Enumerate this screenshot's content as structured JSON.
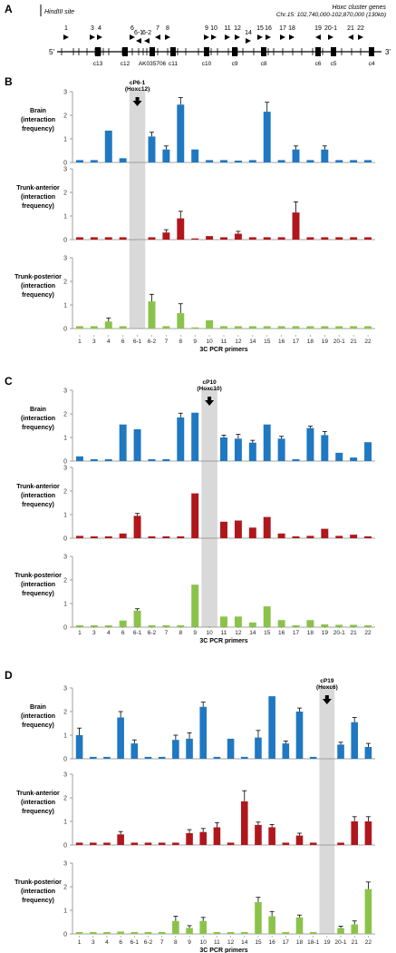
{
  "panel_a": {
    "letter": "A",
    "legend_label": "HindIII site",
    "title_line1": "Hoxc cluster genes",
    "title_line2": "Chr.15: 102,740,000-102,870,000 (130kb)",
    "end5": "5'",
    "end3": "3'",
    "primer_labels": [
      "1",
      "3",
      "4",
      "6",
      "6-1",
      "6-2",
      "7",
      "8",
      "9",
      "10",
      "11",
      "12",
      "14",
      "15",
      "16",
      "17",
      "18",
      "19",
      "20-1",
      "21",
      "22"
    ],
    "gene_labels": [
      "c13",
      "c12",
      "AK035706",
      "c11",
      "c10",
      "c9",
      "c8",
      "c6",
      "c5",
      "c4"
    ]
  },
  "colors": {
    "brain": "#1f78c1",
    "trunk_anterior": "#b0171c",
    "trunk_posterior": "#8bc34a",
    "bait_band": "#d9d9d9"
  },
  "row_labels": {
    "brain": [
      "Brain",
      "(interaction",
      "frequency)"
    ],
    "trunk_anterior": [
      "Trunk-anterior",
      "(interaction",
      "frequency)"
    ],
    "trunk_posterior": [
      "Trunk-posterior",
      "(interaction",
      "frequency)"
    ]
  },
  "chart_data": [
    {
      "panel": "B",
      "type": "bar",
      "bait": {
        "primer": "6-1",
        "label_line1": "cP6-1",
        "label_line2": "(Hoxc12)"
      },
      "xlabel": "3C PCR primers",
      "categories": [
        "1",
        "3",
        "4",
        "6",
        "6-1",
        "6-2",
        "7",
        "8",
        "9",
        "10",
        "11",
        "12",
        "14",
        "15",
        "16",
        "17",
        "18",
        "19",
        "20-1",
        "21",
        "22"
      ],
      "ylim": [
        0,
        3
      ],
      "yticks": [
        0,
        1,
        2,
        3
      ],
      "series": [
        {
          "key": "brain",
          "values": [
            0.1,
            0.1,
            1.35,
            0.18,
            null,
            1.1,
            0.55,
            2.45,
            0.55,
            0.1,
            0.1,
            0.08,
            0.1,
            2.15,
            0.1,
            0.55,
            0.1,
            0.55,
            0.1,
            0.1,
            0.1
          ],
          "errors": [
            0,
            0,
            0,
            0,
            null,
            0.18,
            0.15,
            0.3,
            0,
            0,
            0,
            0,
            0,
            0.4,
            0,
            0.15,
            0,
            0.15,
            0,
            0,
            0
          ]
        },
        {
          "key": "trunk_anterior",
          "values": [
            0.1,
            0.1,
            0.1,
            0.1,
            null,
            0.1,
            0.3,
            0.9,
            0.05,
            0.15,
            0.1,
            0.25,
            0.1,
            0.1,
            0.1,
            1.15,
            0.1,
            0.1,
            0.1,
            0.1,
            0.1
          ],
          "errors": [
            0,
            0,
            0,
            0,
            null,
            0,
            0.12,
            0.3,
            0,
            0,
            0,
            0.1,
            0,
            0,
            0,
            0.45,
            0,
            0,
            0,
            0,
            0
          ]
        },
        {
          "key": "trunk_posterior",
          "values": [
            0.1,
            0.1,
            0.3,
            0.1,
            null,
            1.15,
            0.1,
            0.65,
            0.05,
            0.35,
            0.1,
            0.1,
            0.1,
            0.1,
            0.1,
            0.1,
            0.1,
            0.1,
            0.1,
            0.1,
            0.1
          ],
          "errors": [
            0,
            0,
            0.15,
            0,
            null,
            0.3,
            0,
            0.4,
            0,
            0,
            0,
            0,
            0,
            0,
            0,
            0,
            0,
            0,
            0,
            0,
            0
          ]
        }
      ]
    },
    {
      "panel": "C",
      "type": "bar",
      "bait": {
        "primer": "10",
        "label_line1": "cP10",
        "label_line2": "(Hoxc10)"
      },
      "xlabel": "3C PCR primers",
      "categories": [
        "1",
        "3",
        "4",
        "6",
        "6-1",
        "6-2",
        "7",
        "8",
        "9",
        "10",
        "11",
        "12",
        "14",
        "15",
        "16",
        "17",
        "18",
        "19",
        "20-1",
        "21",
        "22"
      ],
      "ylim": [
        0,
        3
      ],
      "yticks": [
        0,
        1,
        2,
        3
      ],
      "series": [
        {
          "key": "brain",
          "values": [
            0.2,
            0.08,
            0.08,
            1.55,
            1.35,
            0.08,
            0.08,
            1.85,
            2.05,
            null,
            1.0,
            0.95,
            0.78,
            1.55,
            0.95,
            0.08,
            1.4,
            1.1,
            0.35,
            0.15,
            0.8
          ],
          "errors": [
            0,
            0,
            0,
            0,
            0,
            0,
            0,
            0.18,
            0,
            null,
            0.1,
            0.18,
            0.1,
            0,
            0.1,
            0,
            0.08,
            0.15,
            0,
            0,
            0
          ]
        },
        {
          "key": "trunk_anterior",
          "values": [
            0.1,
            0.08,
            0.08,
            0.2,
            0.95,
            0.08,
            0.08,
            0.08,
            1.9,
            null,
            0.7,
            0.75,
            0.45,
            0.9,
            0.2,
            0.08,
            0.1,
            0.4,
            0.1,
            0.15,
            0.08
          ],
          "errors": [
            0,
            0,
            0,
            0,
            0.1,
            0,
            0,
            0,
            0,
            null,
            0,
            0,
            0,
            0,
            0,
            0,
            0,
            0,
            0,
            0,
            0
          ]
        },
        {
          "key": "trunk_posterior",
          "values": [
            0.08,
            0.08,
            0.08,
            0.28,
            0.7,
            0.08,
            0.08,
            0.08,
            1.8,
            null,
            0.45,
            0.45,
            0.2,
            0.88,
            0.3,
            0.08,
            0.3,
            0.12,
            0.1,
            0.1,
            0.08
          ],
          "errors": [
            0,
            0,
            0,
            0,
            0.08,
            0,
            0,
            0,
            0,
            null,
            0,
            0,
            0,
            0,
            0,
            0,
            0,
            0,
            0,
            0,
            0
          ]
        }
      ]
    },
    {
      "panel": "D",
      "type": "bar",
      "bait": {
        "primer": "19",
        "label_line1": "cP19",
        "label_line2": "(Hoxc6)"
      },
      "xlabel": "3C PCR primers",
      "categories": [
        "1",
        "3",
        "4",
        "6",
        "6-1",
        "6-2",
        "7",
        "8",
        "9",
        "10",
        "11",
        "12",
        "14",
        "15",
        "16",
        "17",
        "18",
        "18-1",
        "19",
        "20-1",
        "21",
        "22"
      ],
      "ylim": [
        0,
        3
      ],
      "yticks": [
        0,
        1,
        2,
        3
      ],
      "series": [
        {
          "key": "brain",
          "values": [
            1.0,
            0.08,
            0.08,
            1.75,
            0.65,
            0.08,
            0.08,
            0.8,
            0.85,
            2.2,
            0.08,
            0.85,
            0.08,
            0.9,
            2.65,
            0.65,
            2.0,
            0.08,
            null,
            0.6,
            1.55,
            0.5
          ],
          "errors": [
            0.3,
            0,
            0,
            0.25,
            0.15,
            0,
            0,
            0.2,
            0.25,
            0.2,
            0,
            0,
            0,
            0.3,
            0,
            0.1,
            0.15,
            0,
            null,
            0.1,
            0.2,
            0.15
          ]
        },
        {
          "key": "trunk_anterior",
          "values": [
            0.1,
            0.1,
            0.1,
            0.45,
            0.1,
            0.1,
            0.1,
            0.1,
            0.5,
            0.55,
            0.75,
            0.1,
            1.85,
            0.85,
            0.75,
            0.1,
            0.4,
            0.1,
            null,
            0.1,
            1.0,
            1.0
          ],
          "errors": [
            0,
            0,
            0,
            0.12,
            0,
            0,
            0,
            0,
            0.15,
            0.15,
            0.2,
            0,
            0.45,
            0.12,
            0.12,
            0,
            0.1,
            0,
            null,
            0,
            0.2,
            0.2
          ]
        },
        {
          "key": "trunk_posterior",
          "values": [
            0.08,
            0.08,
            0.08,
            0.1,
            0.08,
            0.08,
            0.08,
            0.55,
            0.25,
            0.55,
            0.08,
            0.08,
            0.08,
            1.35,
            0.75,
            0.08,
            0.7,
            0.08,
            null,
            0.25,
            0.4,
            1.9
          ],
          "errors": [
            0,
            0,
            0,
            0,
            0,
            0,
            0,
            0.2,
            0.1,
            0.15,
            0,
            0,
            0,
            0.2,
            0.2,
            0,
            0.1,
            0,
            null,
            0.08,
            0.15,
            0.3
          ]
        }
      ]
    }
  ]
}
